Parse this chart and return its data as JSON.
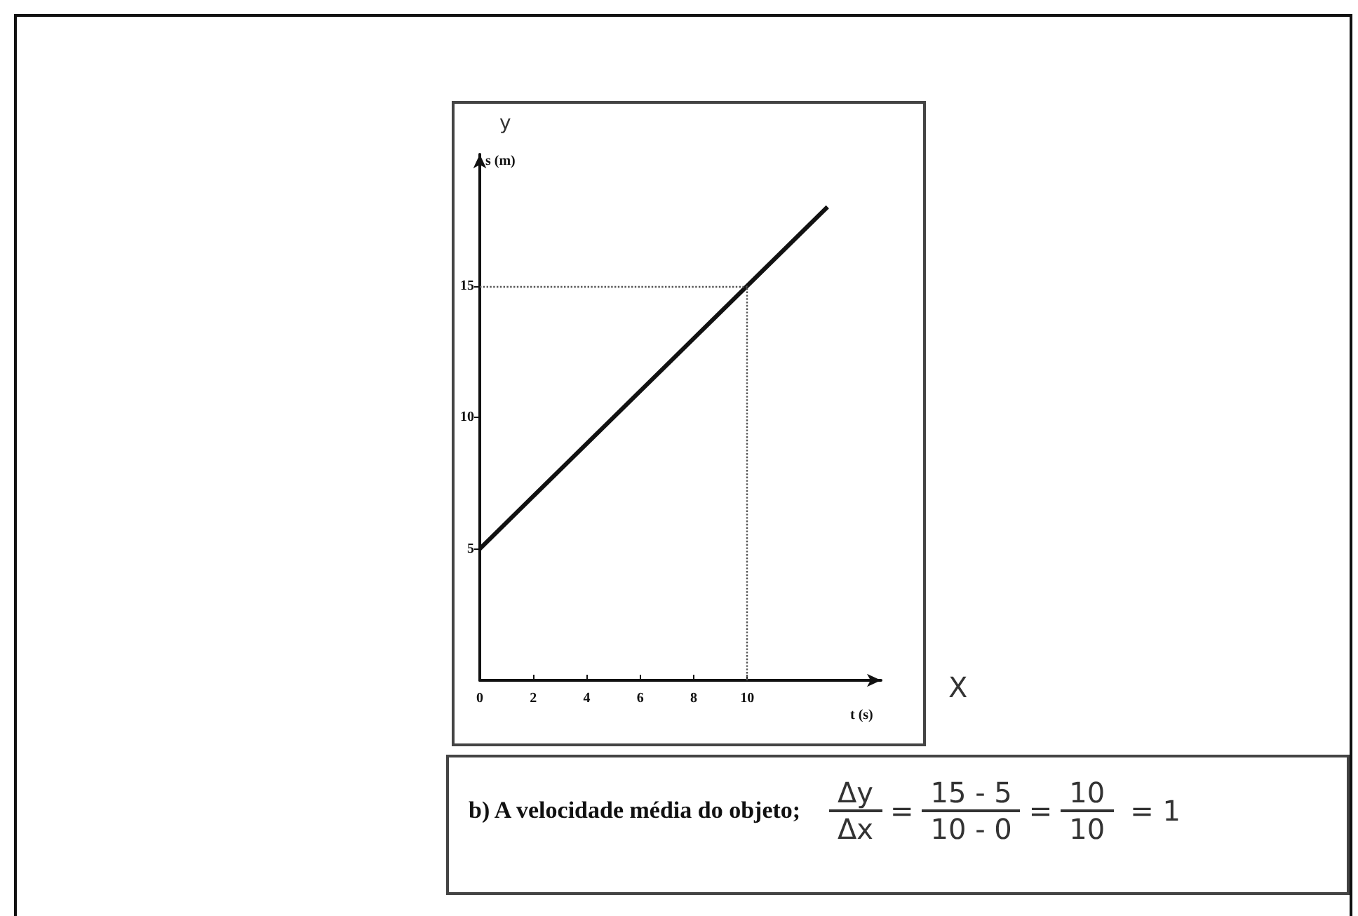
{
  "chart_data": {
    "type": "line",
    "xlabel": "t (s)",
    "ylabel": "s (m)",
    "x": [
      0,
      10,
      13
    ],
    "series": [
      {
        "color": "#111111",
        "values": [
          5,
          15,
          18
        ]
      }
    ],
    "xlim": [
      0,
      15
    ],
    "xticks": [
      0,
      2,
      4,
      6,
      8,
      10
    ],
    "ylim": [
      0,
      20
    ],
    "yticks": [
      5,
      10,
      15
    ],
    "ref_lines": [
      {
        "axis": "y",
        "value": 15,
        "line_style": "dotted",
        "color": "#555555"
      },
      {
        "axis": "x",
        "value": 10,
        "line_style": "dotted",
        "color": "#555555"
      }
    ],
    "grid": false,
    "marker": "none",
    "line_style": "solid",
    "annotations": [
      "b) A velocidade média do objeto;",
      "Δy",
      "Δx",
      "=",
      "15 - 5",
      "10 - 0",
      "=",
      "10",
      "10",
      "= 1",
      "y",
      "X"
    ]
  }
}
